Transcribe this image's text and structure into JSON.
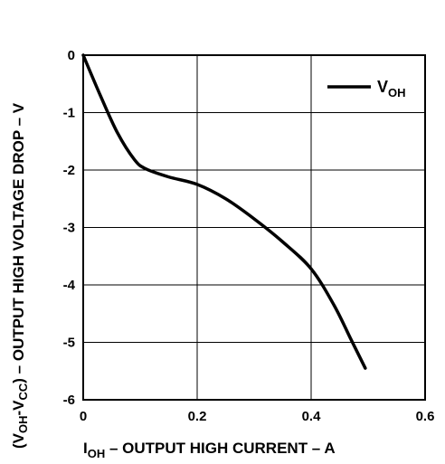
{
  "chart_data": {
    "type": "line",
    "xlabel": {
      "main": "I",
      "sub": "OH",
      "rest": " – OUTPUT HIGH CURRENT – A"
    },
    "ylabel": {
      "open": "(V",
      "sub1": "OH",
      "mid": "-V",
      "sub2": "CC",
      "rest": ") – OUTPUT HIGH VOLTAGE DROP – V"
    },
    "xlim": [
      0,
      0.6
    ],
    "ylim": [
      -6,
      0
    ],
    "xticks": [
      0,
      0.2,
      0.4,
      0.6
    ],
    "xtick_labels": [
      "0",
      "0.2",
      "0.4",
      "0.6"
    ],
    "yticks": [
      0,
      -1,
      -2,
      -3,
      -4,
      -5,
      -6
    ],
    "ytick_labels": [
      "0",
      "-1",
      "-2",
      "-3",
      "-4",
      "-5",
      "-6"
    ],
    "grid": true,
    "legend_position": "top-right",
    "series": [
      {
        "name": {
          "main": "V",
          "sub": "OH"
        },
        "color": "#000000",
        "x": [
          0,
          0.03,
          0.06,
          0.09,
          0.11,
          0.15,
          0.2,
          0.25,
          0.3,
          0.35,
          0.4,
          0.44,
          0.47,
          0.495
        ],
        "y": [
          0,
          -0.7,
          -1.35,
          -1.82,
          -1.98,
          -2.12,
          -2.25,
          -2.5,
          -2.85,
          -3.25,
          -3.72,
          -4.35,
          -4.95,
          -5.45
        ]
      }
    ]
  }
}
